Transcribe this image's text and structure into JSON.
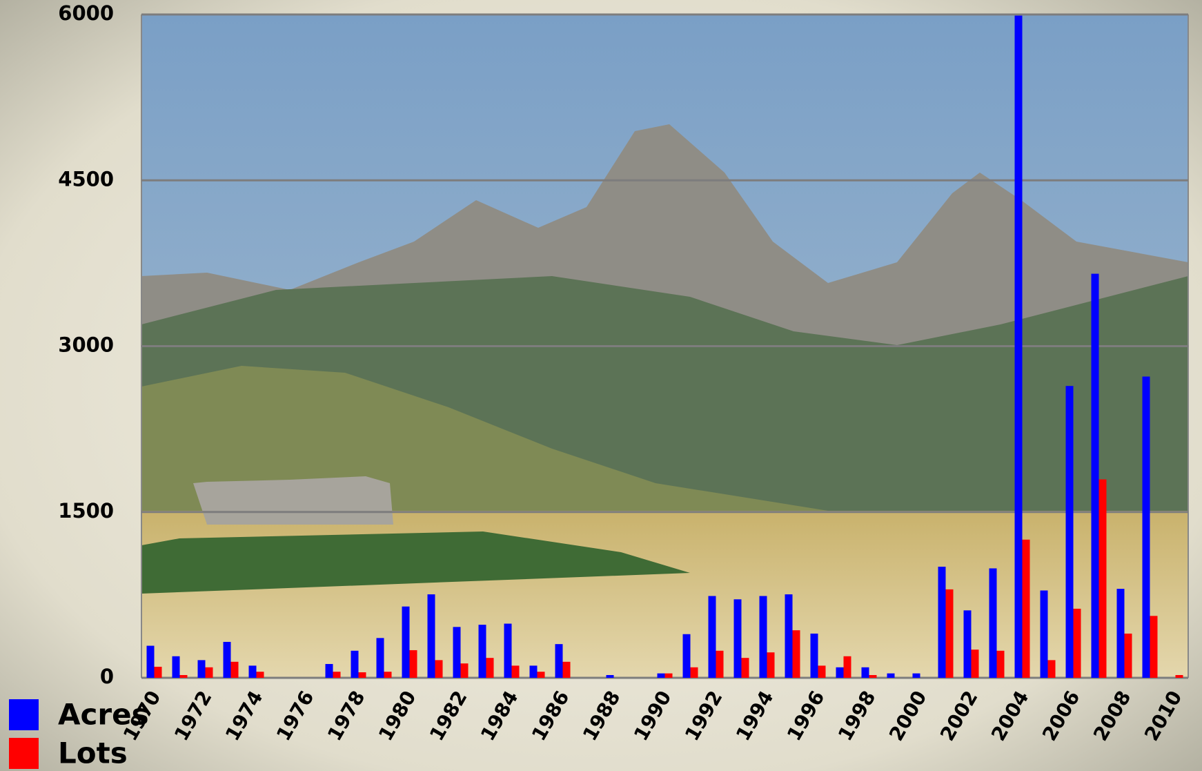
{
  "chart_data": {
    "type": "bar",
    "categories": [
      "1970",
      null,
      "1972",
      null,
      "1974",
      null,
      "1976",
      null,
      "1978",
      null,
      "1980",
      null,
      "1982",
      null,
      "1984",
      null,
      "1986",
      null,
      "1988",
      null,
      "1990",
      null,
      "1992",
      null,
      "1994",
      null,
      "1996",
      null,
      "1998",
      null,
      "2000",
      null,
      "2002",
      null,
      "2004",
      null,
      "2006",
      null,
      "2008",
      null,
      "2010"
    ],
    "series": [
      {
        "name": "Acres",
        "color": "#0000ff",
        "values": [
          290,
          195,
          160,
          325,
          110,
          0,
          0,
          125,
          245,
          360,
          645,
          755,
          460,
          480,
          490,
          110,
          305,
          0,
          25,
          0,
          40,
          395,
          740,
          710,
          740,
          755,
          400,
          95,
          95,
          40,
          40,
          1005,
          610,
          990,
          5990,
          790,
          2640,
          3655,
          805,
          2725,
          0
        ]
      },
      {
        "name": "Lots",
        "color": "#ff0000",
        "values": [
          100,
          25,
          95,
          145,
          55,
          0,
          0,
          55,
          50,
          55,
          250,
          160,
          130,
          180,
          110,
          55,
          145,
          0,
          0,
          0,
          40,
          95,
          245,
          180,
          230,
          430,
          110,
          195,
          25,
          0,
          0,
          800,
          255,
          245,
          1250,
          160,
          625,
          1795,
          400,
          560,
          25
        ]
      }
    ],
    "ylim": [
      0,
      6000
    ],
    "yticks": [
      0,
      1500,
      3000,
      4500,
      6000
    ],
    "grid": true,
    "legend": "bottom-left"
  }
}
